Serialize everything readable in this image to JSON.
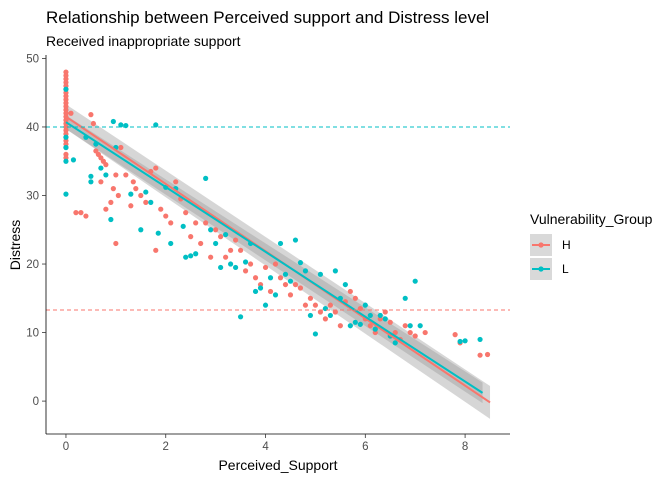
{
  "chart_data": {
    "type": "scatter",
    "title": "Relationship between Perceived support and Distress level",
    "subtitle": "Received inappropriate support",
    "xlabel": "Perceived_Support",
    "ylabel": "Distress",
    "xlim": [
      -0.4,
      8.9
    ],
    "ylim": [
      -4.8,
      50.5
    ],
    "x_ticks": [
      0,
      2,
      4,
      6,
      8
    ],
    "y_ticks": [
      0,
      10,
      20,
      30,
      40,
      50
    ],
    "grid": false,
    "legend": {
      "title": "Vulnerability_Group",
      "placement": "right"
    },
    "hlines": [
      {
        "y": 40.0,
        "color": "#00BFC4",
        "style": "dashed"
      },
      {
        "y": 13.3,
        "color": "#F8766D",
        "style": "dashed"
      }
    ],
    "series": [
      {
        "name": "H",
        "color": "#F8766D",
        "points": [
          [
            0,
            48
          ],
          [
            0,
            47.5
          ],
          [
            0,
            47
          ],
          [
            0,
            46.5
          ],
          [
            0,
            46
          ],
          [
            0,
            45.5
          ],
          [
            0,
            45
          ],
          [
            0,
            44.5
          ],
          [
            0,
            44
          ],
          [
            0,
            43.5
          ],
          [
            0,
            43
          ],
          [
            0,
            42.5
          ],
          [
            0,
            42
          ],
          [
            0,
            41.5
          ],
          [
            0,
            41
          ],
          [
            0,
            40.5
          ],
          [
            0,
            40
          ],
          [
            0,
            39.5
          ],
          [
            0,
            39
          ],
          [
            0,
            38.5
          ],
          [
            0,
            38
          ],
          [
            0,
            37.5
          ],
          [
            0,
            37
          ],
          [
            0,
            36
          ],
          [
            0,
            35.5
          ],
          [
            0.1,
            42
          ],
          [
            0.2,
            27.5
          ],
          [
            0.3,
            27.5
          ],
          [
            0.4,
            27
          ],
          [
            0.5,
            41.8
          ],
          [
            0.55,
            40.5
          ],
          [
            0.6,
            36.5
          ],
          [
            0.65,
            36
          ],
          [
            0.7,
            35.5
          ],
          [
            0.75,
            35
          ],
          [
            0.8,
            34.5
          ],
          [
            0.7,
            32
          ],
          [
            0.8,
            28
          ],
          [
            0.9,
            29
          ],
          [
            0.95,
            31
          ],
          [
            1.0,
            23
          ],
          [
            1.0,
            33
          ],
          [
            1.05,
            30
          ],
          [
            1.1,
            37
          ],
          [
            1.2,
            33
          ],
          [
            1.3,
            28.5
          ],
          [
            1.35,
            32
          ],
          [
            1.4,
            31
          ],
          [
            1.5,
            30
          ],
          [
            1.6,
            29
          ],
          [
            1.7,
            33.5
          ],
          [
            1.8,
            34
          ],
          [
            1.8,
            22
          ],
          [
            1.9,
            28
          ],
          [
            2.0,
            27
          ],
          [
            2.1,
            26
          ],
          [
            2.2,
            32
          ],
          [
            2.3,
            29.5
          ],
          [
            2.4,
            27.5
          ],
          [
            2.5,
            24
          ],
          [
            2.6,
            26
          ],
          [
            2.7,
            23
          ],
          [
            2.8,
            26
          ],
          [
            2.9,
            21
          ],
          [
            3.0,
            25
          ],
          [
            3.1,
            24
          ],
          [
            3.2,
            21
          ],
          [
            3.3,
            22
          ],
          [
            3.4,
            23.5
          ],
          [
            3.5,
            22
          ],
          [
            3.6,
            19
          ],
          [
            3.7,
            20
          ],
          [
            3.8,
            18
          ],
          [
            3.9,
            17
          ],
          [
            4.0,
            19.5
          ],
          [
            4.1,
            16
          ],
          [
            4.2,
            20
          ],
          [
            4.3,
            18
          ],
          [
            4.4,
            17
          ],
          [
            4.5,
            15.5
          ],
          [
            4.6,
            17
          ],
          [
            4.7,
            16.5
          ],
          [
            4.8,
            14
          ],
          [
            4.9,
            15
          ],
          [
            5.0,
            14
          ],
          [
            5.1,
            13
          ],
          [
            5.2,
            12
          ],
          [
            5.3,
            14
          ],
          [
            5.4,
            13
          ],
          [
            5.5,
            11
          ],
          [
            5.6,
            14.5
          ],
          [
            5.7,
            16
          ],
          [
            5.8,
            15
          ],
          [
            5.9,
            13.5
          ],
          [
            6.0,
            12
          ],
          [
            6.1,
            11
          ],
          [
            6.2,
            10
          ],
          [
            6.3,
            12
          ],
          [
            6.4,
            13
          ],
          [
            6.5,
            11.5
          ],
          [
            6.6,
            10
          ],
          [
            6.7,
            9
          ],
          [
            6.8,
            11
          ],
          [
            6.9,
            10
          ],
          [
            7.0,
            9.5
          ],
          [
            7.2,
            10
          ],
          [
            7.8,
            9.7
          ],
          [
            7.9,
            8.5
          ],
          [
            8.3,
            6.7
          ],
          [
            8.45,
            6.8
          ]
        ]
      },
      {
        "name": "L",
        "color": "#00BFC4",
        "points": [
          [
            0,
            45.5
          ],
          [
            0,
            38.5
          ],
          [
            0,
            37
          ],
          [
            0,
            35
          ],
          [
            0,
            30.2
          ],
          [
            0.15,
            35.2
          ],
          [
            0.4,
            38.5
          ],
          [
            0.5,
            32
          ],
          [
            0.5,
            32.8
          ],
          [
            0.6,
            37.5
          ],
          [
            0.7,
            34
          ],
          [
            0.8,
            33
          ],
          [
            0.9,
            26.5
          ],
          [
            0.95,
            40.8
          ],
          [
            1.0,
            37
          ],
          [
            1.1,
            40.3
          ],
          [
            1.2,
            40.2
          ],
          [
            1.3,
            30.2
          ],
          [
            1.5,
            25
          ],
          [
            1.6,
            30.5
          ],
          [
            1.7,
            29
          ],
          [
            1.8,
            40.3
          ],
          [
            1.85,
            24.5
          ],
          [
            2.0,
            31.2
          ],
          [
            2.1,
            23
          ],
          [
            2.2,
            31
          ],
          [
            2.35,
            25.5
          ],
          [
            2.4,
            21
          ],
          [
            2.5,
            21.2
          ],
          [
            2.6,
            21.5
          ],
          [
            2.8,
            32.5
          ],
          [
            2.9,
            25
          ],
          [
            3.0,
            23
          ],
          [
            3.1,
            19.5
          ],
          [
            3.2,
            24.3
          ],
          [
            3.3,
            20
          ],
          [
            3.4,
            19.5
          ],
          [
            3.5,
            12.3
          ],
          [
            3.6,
            20.3
          ],
          [
            3.7,
            23
          ],
          [
            3.8,
            16
          ],
          [
            3.9,
            16.5
          ],
          [
            4.0,
            14
          ],
          [
            4.1,
            18
          ],
          [
            4.2,
            15.5
          ],
          [
            4.3,
            23
          ],
          [
            4.4,
            18.5
          ],
          [
            4.5,
            17.5
          ],
          [
            4.6,
            23.5
          ],
          [
            4.7,
            20.2
          ],
          [
            4.8,
            19
          ],
          [
            4.9,
            12.5
          ],
          [
            5.0,
            9.8
          ],
          [
            5.1,
            18.5
          ],
          [
            5.2,
            13.5
          ],
          [
            5.3,
            12.5
          ],
          [
            5.4,
            19
          ],
          [
            5.5,
            15
          ],
          [
            5.6,
            17
          ],
          [
            5.7,
            11
          ],
          [
            5.8,
            11.5
          ],
          [
            5.9,
            11.2
          ],
          [
            6.0,
            14
          ],
          [
            6.1,
            12.5
          ],
          [
            6.2,
            10.5
          ],
          [
            6.3,
            12.5
          ],
          [
            6.4,
            12
          ],
          [
            6.5,
            9.5
          ],
          [
            6.6,
            8.5
          ],
          [
            6.8,
            15
          ],
          [
            6.9,
            11
          ],
          [
            7.0,
            17.5
          ],
          [
            7.1,
            11
          ],
          [
            7.9,
            8.7
          ],
          [
            8.0,
            8.8
          ],
          [
            8.3,
            9
          ]
        ]
      }
    ],
    "fits": [
      {
        "series": "H",
        "x": [
          0,
          8.5
        ],
        "y": [
          41.5,
          -0.2
        ],
        "ci_halfwidth": [
          1.8,
          2.4
        ]
      },
      {
        "series": "L",
        "x": [
          0,
          8.35
        ],
        "y": [
          40.7,
          1.2
        ],
        "ci_halfwidth": [
          1.0,
          1.5
        ]
      }
    ]
  }
}
